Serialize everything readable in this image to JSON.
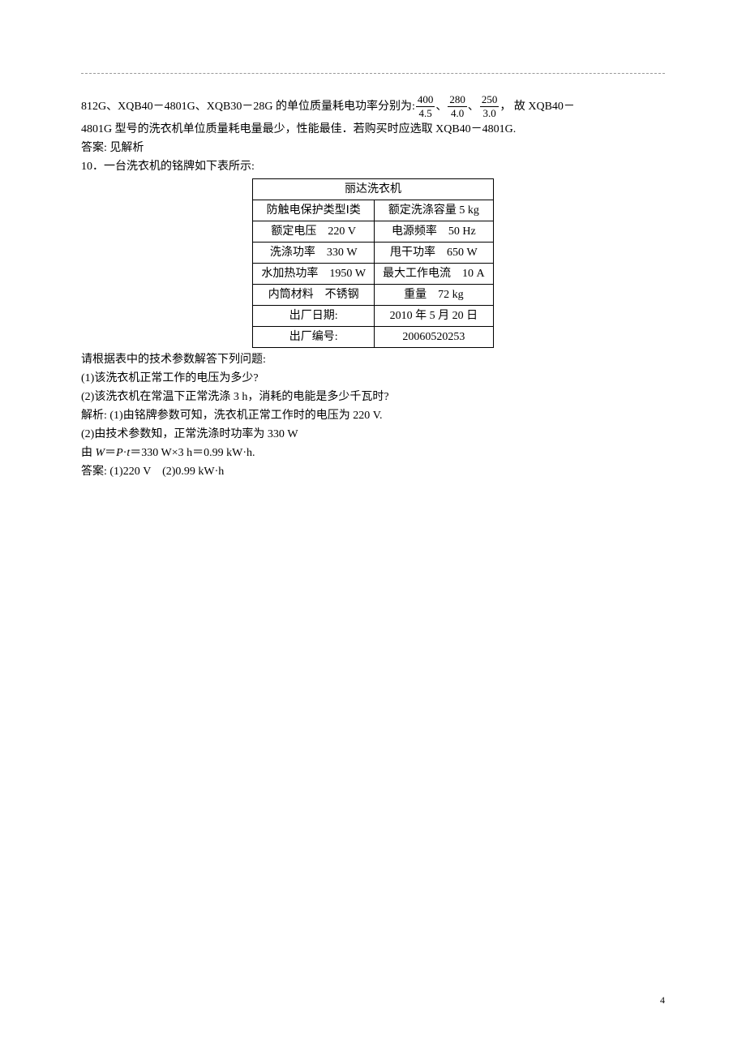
{
  "intro": {
    "line1_pre": "812G、XQB40－4801G、XQB30－28G 的单位质量耗电功率分别为: ",
    "frac1_num": "400",
    "frac1_den": "4.5",
    "sep1": "、",
    "frac2_num": "280",
    "frac2_den": "4.0",
    "sep2": "、",
    "frac3_num": "250",
    "frac3_den": "3.0",
    "line1_post": "， 故 XQB40－",
    "line2": "4801G 型号的洗衣机单位质量耗电量最少，性能最佳．若购买时应选取 XQB40－4801G.",
    "line3": "答案: 见解析",
    "line4": "10．一台洗衣机的铭牌如下表所示:"
  },
  "table": {
    "title": "丽达洗衣机",
    "rows": [
      [
        "防触电保护类型Ⅰ类",
        "额定洗涤容量 5 kg"
      ],
      [
        "额定电压　220 V",
        "电源频率　50 Hz"
      ],
      [
        "洗涤功率　330 W",
        "甩干功率　650 W"
      ],
      [
        "水加热功率　1950 W",
        "最大工作电流　10 A"
      ],
      [
        "内筒材料　不锈钢",
        "重量　72 kg"
      ],
      [
        "出厂日期:",
        "2010 年 5 月 20 日"
      ],
      [
        "出厂编号:",
        "20060520253"
      ]
    ]
  },
  "after": {
    "q_intro": "请根据表中的技术参数解答下列问题:",
    "q1": "(1)该洗衣机正常工作的电压为多少?",
    "q2": "(2)该洗衣机在常温下正常洗涤 3 h，消耗的电能是多少千瓦时?",
    "a1": "解析: (1)由铭牌参数可知，洗衣机正常工作时的电压为 220 V.",
    "a2": "(2)由技术参数知，正常洗涤时功率为 330 W",
    "a3_pre": "由 ",
    "a3_W": "W",
    "a3_eq": "＝",
    "a3_P": "P",
    "a3_dot": "·",
    "a3_t": "t",
    "a3_post": "＝330 W×3 h＝0.99 kW·h.",
    "ans": "答案: (1)220 V　(2)0.99 kW·h"
  },
  "page_number": "4"
}
